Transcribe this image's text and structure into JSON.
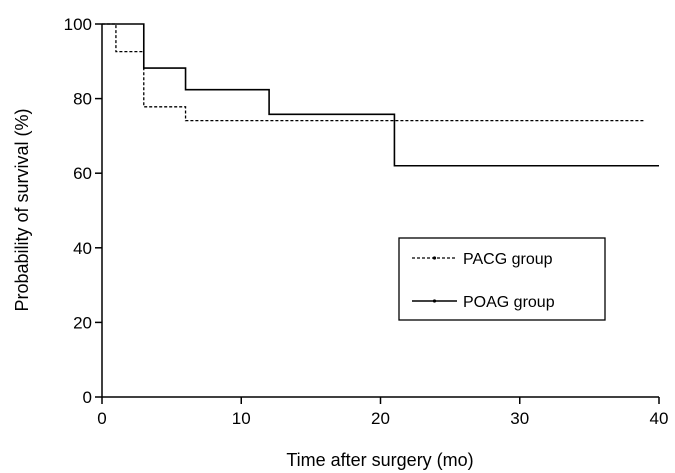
{
  "chart_data": {
    "type": "line",
    "step": true,
    "xlabel": "Time after surgery (mo)",
    "ylabel": "Probability of survival (%)",
    "xlim": [
      0,
      40
    ],
    "ylim": [
      0,
      100
    ],
    "xticks": [
      0,
      10,
      20,
      30,
      40
    ],
    "yticks": [
      0,
      20,
      40,
      60,
      80,
      100
    ],
    "grid": false,
    "legend_position": "center-right",
    "series": [
      {
        "name": "PACG group",
        "line_style": "dashed",
        "color": "#000000",
        "points": [
          {
            "x": 0,
            "y": 100
          },
          {
            "x": 1,
            "y": 92.6
          },
          {
            "x": 3,
            "y": 77.8
          },
          {
            "x": 6,
            "y": 74.1
          },
          {
            "x": 39,
            "y": 74.1
          }
        ]
      },
      {
        "name": "POAG group",
        "line_style": "solid",
        "color": "#000000",
        "points": [
          {
            "x": 0,
            "y": 100
          },
          {
            "x": 3,
            "y": 88.2
          },
          {
            "x": 6,
            "y": 82.4
          },
          {
            "x": 12,
            "y": 75.8
          },
          {
            "x": 21,
            "y": 62.0
          },
          {
            "x": 40,
            "y": 62.0
          }
        ]
      }
    ]
  }
}
